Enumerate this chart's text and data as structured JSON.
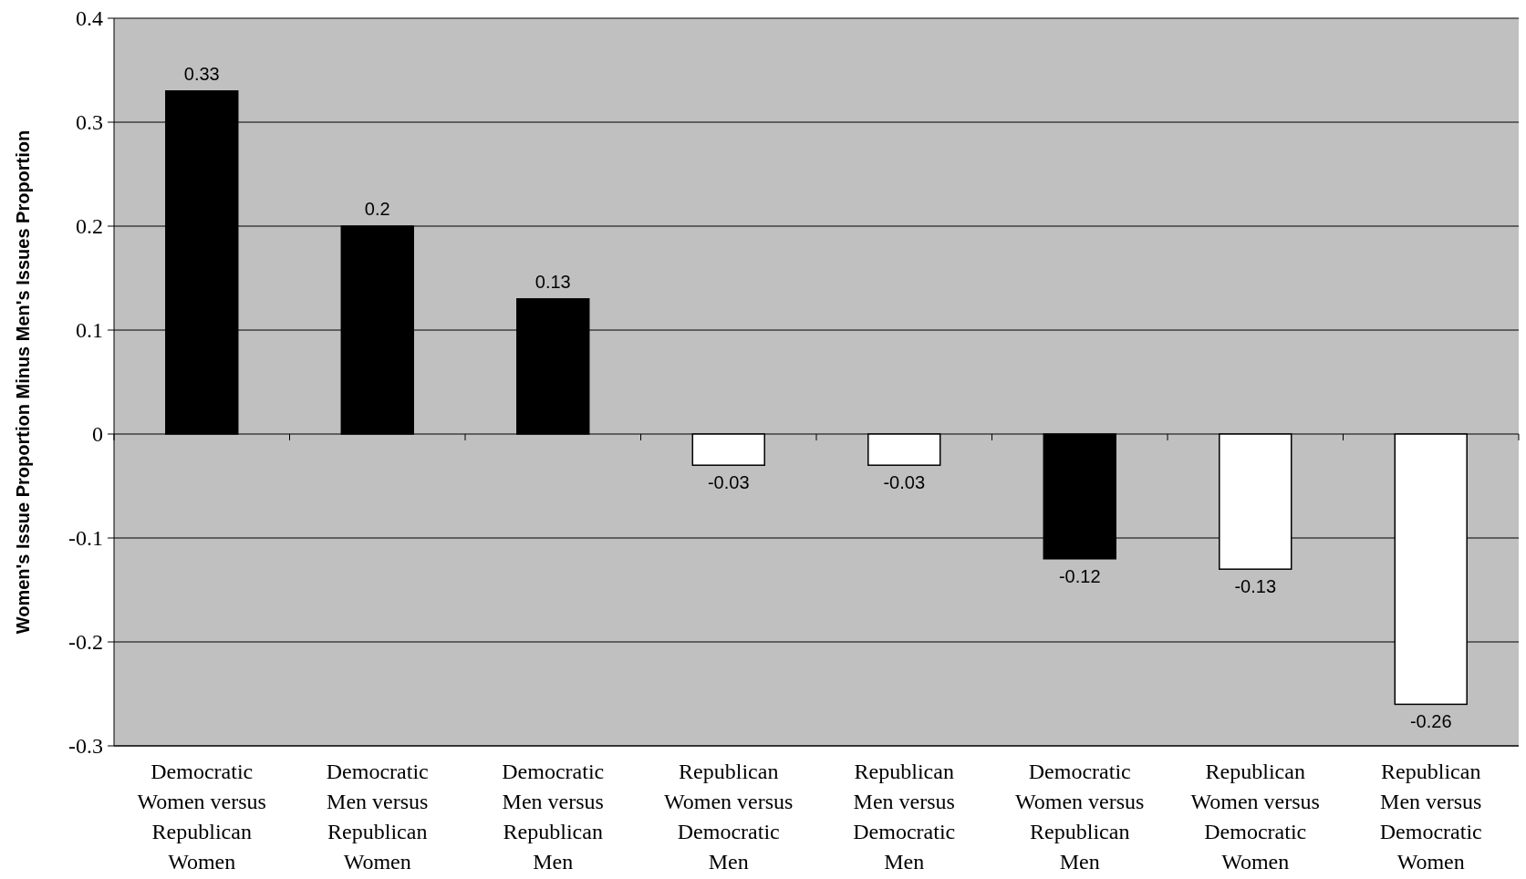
{
  "chart_data": {
    "type": "bar",
    "ylabel": "Women's Issue Proportion Minus Men's Issues Proportion",
    "categories": [
      "Democratic Women versus Republican Women",
      "Democratic Men versus Republican Women",
      "Democratic Men versus Republican Men",
      "Republican Women versus Democratic Men",
      "Republican Men versus Democratic Men",
      "Democratic Women versus Republican Men",
      "Republican Women versus Democratic Women",
      "Republican Men versus Democratic Women"
    ],
    "values": [
      0.33,
      0.2,
      0.13,
      -0.03,
      -0.03,
      -0.12,
      -0.13,
      -0.26
    ],
    "colors": [
      "#000000",
      "#000000",
      "#000000",
      "#ffffff",
      "#ffffff",
      "#000000",
      "#ffffff",
      "#ffffff"
    ],
    "ylim": [
      -0.3,
      0.4
    ],
    "yticks": [
      -0.3,
      -0.2,
      -0.1,
      0,
      0.1,
      0.2,
      0.3,
      0.4
    ],
    "grid": "y",
    "data_labels": true
  }
}
